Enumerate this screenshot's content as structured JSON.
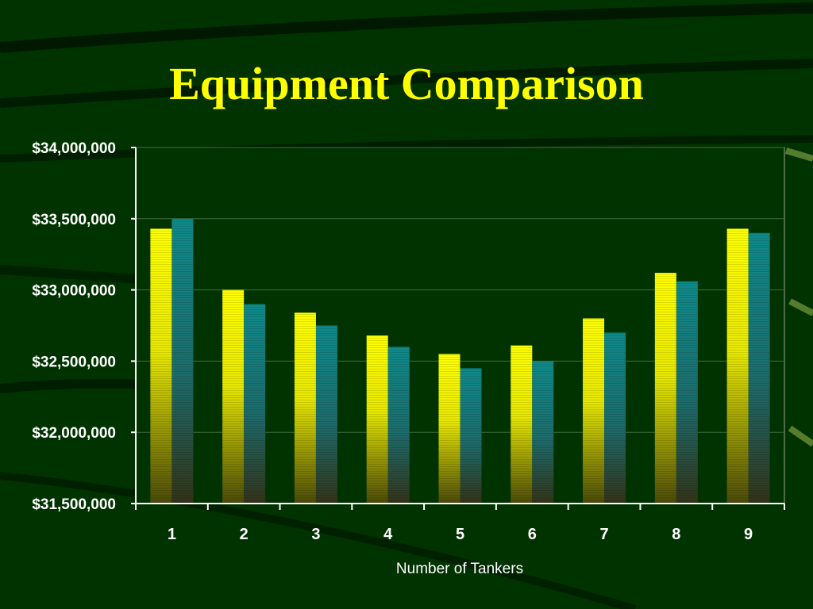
{
  "slide": {
    "title": "Equipment Comparison"
  },
  "colors": {
    "background": "#013300",
    "title": "#ffff00",
    "series_a_top": "#ffff00",
    "series_a_bottom": "#4a4a0a",
    "series_b_top": "#0f8a8a",
    "series_b_bottom": "#333318"
  },
  "chart_data": {
    "type": "bar",
    "categories": [
      "1",
      "2",
      "3",
      "4",
      "5",
      "6",
      "7",
      "8",
      "9"
    ],
    "series": [
      {
        "values": [
          33430000,
          33000000,
          32840000,
          32680000,
          32550000,
          32610000,
          32800000,
          33120000,
          33430000
        ]
      },
      {
        "values": [
          33500000,
          32900000,
          32750000,
          32600000,
          32450000,
          32500000,
          32700000,
          33060000,
          33400000
        ]
      }
    ],
    "title": "",
    "xlabel": "Number of Tankers",
    "ylabel": "",
    "ylim": [
      31500000,
      34000000
    ],
    "yticks": [
      31500000,
      32000000,
      32500000,
      33000000,
      33500000,
      34000000
    ],
    "ytick_labels": [
      "$31,500,000",
      "$32,000,000",
      "$32,500,000",
      "$33,000,000",
      "$33,500,000",
      "$34,000,000"
    ],
    "grid": true,
    "legend": "none"
  }
}
